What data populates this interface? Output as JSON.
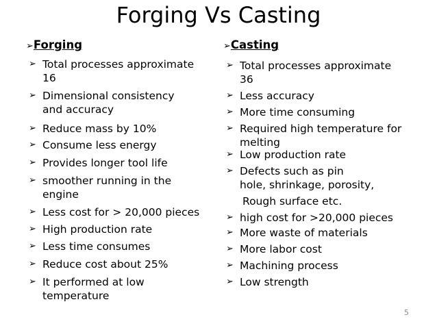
{
  "title": "Forging Vs Casting",
  "bullet_glyph": "➢",
  "forging": {
    "heading": "Forging",
    "items": [
      {
        "lines": [
          "Total processes approximate",
          "16"
        ]
      },
      {
        "lines": [
          "Dimensional consistency",
          "and accuracy"
        ]
      },
      {
        "lines": [
          "Reduce mass by 10%"
        ]
      },
      {
        "lines": [
          "Consume less energy"
        ]
      },
      {
        "lines": [
          "Provides longer  tool  life"
        ]
      },
      {
        "lines": [
          "smoother running in the",
          "engine"
        ]
      },
      {
        "lines": [
          "Less cost for > 20,000 pieces"
        ]
      },
      {
        "lines": [
          "High production rate"
        ]
      },
      {
        "lines": [
          "Less time consumes"
        ]
      },
      {
        "lines": [
          "Reduce  cost  about  25%"
        ]
      },
      {
        "lines": [
          "It performed at low",
          "temperature"
        ]
      }
    ]
  },
  "casting": {
    "heading": "Casting",
    "items": [
      {
        "lines": [
          "Total processes approximate",
          "36"
        ]
      },
      {
        "lines": [
          "Less accuracy"
        ]
      },
      {
        "lines": [
          "More time consuming"
        ]
      },
      {
        "lines": [
          "Required high temperature for",
          "melting"
        ]
      },
      {
        "lines": [
          "Low production rate"
        ]
      },
      {
        "lines": [
          "Defects such as pin",
          "hole, shrinkage, porosity,"
        ]
      },
      {
        "lines": [
          "Rough surface etc."
        ],
        "no_bullet": true
      },
      {
        "lines": [
          "high cost for >20,000 pieces"
        ]
      },
      {
        "lines": [
          "More waste of materials"
        ]
      },
      {
        "lines": [
          "More  labor cost"
        ]
      },
      {
        "lines": [
          "Machining   process"
        ]
      },
      {
        "lines": [
          "Low   strength"
        ]
      }
    ]
  },
  "page_number": "5"
}
